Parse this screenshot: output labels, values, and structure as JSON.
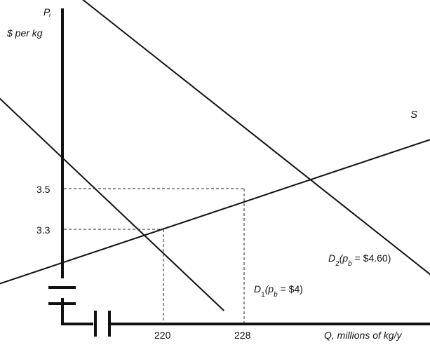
{
  "chart_data": {
    "type": "line",
    "title": "",
    "ylabel": {
      "line1": "P,",
      "line2": "$ per kg"
    },
    "xlabel": "Q, millions of kg/y",
    "xlim": [
      0,
      250
    ],
    "ylim": [
      0,
      5
    ],
    "axis_breaks": {
      "x": true,
      "y": true
    },
    "x_ticks": [
      {
        "value": 220,
        "label": "220"
      },
      {
        "value": 228,
        "label": "228"
      }
    ],
    "y_ticks": [
      {
        "value": 3.3,
        "label": "3.3"
      },
      {
        "value": 3.5,
        "label": "3.5"
      }
    ],
    "series": [
      {
        "key": "S",
        "label": {
          "main": "S",
          "sub": "",
          "tail": ""
        },
        "points": [
          [
            200,
            2.97
          ],
          [
            250,
            3.8
          ]
        ]
      },
      {
        "key": "D1",
        "label": {
          "main": "D",
          "sub": "1",
          "tail": "(p",
          "sub2": "b",
          "end": " = $4)"
        },
        "points": [
          [
            200,
            4.12
          ],
          [
            226,
            2.9
          ]
        ]
      },
      {
        "key": "D2",
        "label": {
          "main": "D",
          "sub": "2",
          "tail": "(p",
          "sub2": "b",
          "end": " = $4.60)"
        },
        "points": [
          [
            200,
            4.9
          ],
          [
            251,
            2.9
          ]
        ]
      }
    ],
    "equilibria": [
      {
        "q": 220,
        "p": 3.3
      },
      {
        "q": 228,
        "p": 3.5
      }
    ],
    "grid": false,
    "legend": "none"
  }
}
